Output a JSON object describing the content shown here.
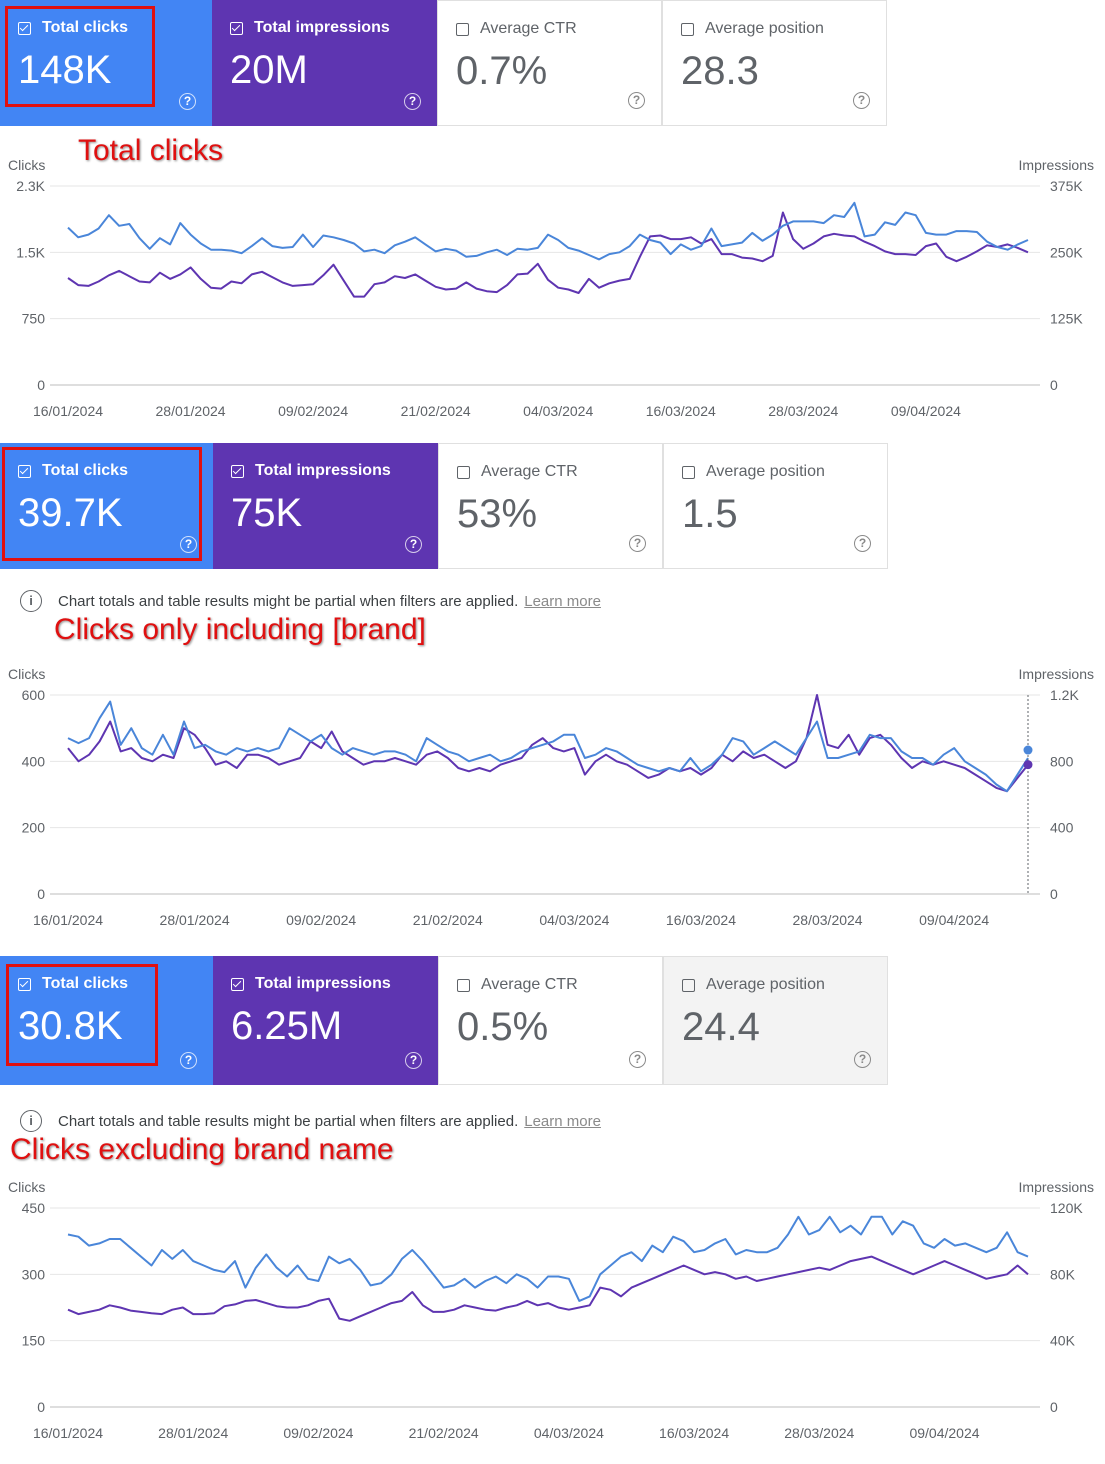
{
  "panels": [
    {
      "cards": {
        "clicks": {
          "label": "Total clicks",
          "value": "148K"
        },
        "impressions": {
          "label": "Total impressions",
          "value": "20M"
        },
        "ctr": {
          "label": "Average CTR",
          "value": "0.7%"
        },
        "position": {
          "label": "Average position",
          "value": "28.3"
        }
      },
      "annotation": "Total clicks"
    },
    {
      "cards": {
        "clicks": {
          "label": "Total clicks",
          "value": "39.7K"
        },
        "impressions": {
          "label": "Total impressions",
          "value": "75K"
        },
        "ctr": {
          "label": "Average CTR",
          "value": "53%"
        },
        "position": {
          "label": "Average position",
          "value": "1.5"
        }
      },
      "info": {
        "text": "Chart totals and table results might be partial when filters are applied.",
        "link": "Learn more"
      },
      "annotation": "Clicks only including [brand]"
    },
    {
      "cards": {
        "clicks": {
          "label": "Total clicks",
          "value": "30.8K"
        },
        "impressions": {
          "label": "Total impressions",
          "value": "6.25M"
        },
        "ctr": {
          "label": "Average CTR",
          "value": "0.5%"
        },
        "position": {
          "label": "Average position",
          "value": "24.4"
        }
      },
      "info": {
        "text": "Chart totals and table results might be partial when filters are applied.",
        "link": "Learn more"
      },
      "annotation": "Clicks excluding brand name"
    }
  ],
  "colors": {
    "clicks": "#4a86d9",
    "impressions": "#5e35b1"
  },
  "chart_data": [
    {
      "type": "line",
      "left_axis_label": "Clicks",
      "right_axis_label": "Impressions",
      "left_ticks": [
        "0",
        "750",
        "1.5K",
        "2.3K"
      ],
      "left_tick_values": [
        0,
        750,
        1500,
        2250
      ],
      "right_ticks": [
        "0",
        "125K",
        "250K",
        "375K"
      ],
      "right_tick_values": [
        0,
        125000,
        250000,
        375000
      ],
      "x_tick_labels": [
        "16/01/2024",
        "28/01/2024",
        "09/02/2024",
        "21/02/2024",
        "04/03/2024",
        "16/03/2024",
        "28/03/2024",
        "09/04/2024"
      ],
      "x_tick_indices": [
        0,
        12,
        24,
        36,
        48,
        60,
        72,
        84
      ],
      "series": [
        {
          "name": "Total clicks",
          "axis": "left",
          "values": [
            1780,
            1670,
            1700,
            1770,
            1920,
            1800,
            1820,
            1660,
            1540,
            1660,
            1590,
            1830,
            1700,
            1600,
            1530,
            1530,
            1520,
            1490,
            1570,
            1660,
            1570,
            1550,
            1560,
            1700,
            1560,
            1690,
            1670,
            1640,
            1600,
            1510,
            1530,
            1490,
            1580,
            1620,
            1670,
            1590,
            1510,
            1540,
            1520,
            1450,
            1460,
            1500,
            1530,
            1470,
            1540,
            1530,
            1550,
            1700,
            1640,
            1550,
            1520,
            1470,
            1420,
            1480,
            1500,
            1570,
            1700,
            1640,
            1610,
            1480,
            1590,
            1530,
            1570,
            1770,
            1570,
            1590,
            1610,
            1720,
            1630,
            1700,
            1800,
            1850,
            1850,
            1850,
            1830,
            1920,
            1900,
            2060,
            1680,
            1700,
            1840,
            1810,
            1950,
            1920,
            1720,
            1700,
            1700,
            1740,
            1740,
            1730,
            1620,
            1560,
            1530,
            1590,
            1640
          ]
        },
        {
          "name": "Total impressions",
          "axis": "left",
          "values": [
            1210,
            1130,
            1120,
            1170,
            1240,
            1290,
            1230,
            1170,
            1160,
            1270,
            1200,
            1250,
            1330,
            1200,
            1100,
            1090,
            1170,
            1150,
            1250,
            1280,
            1220,
            1160,
            1120,
            1130,
            1140,
            1240,
            1360,
            1180,
            1000,
            1000,
            1140,
            1160,
            1230,
            1210,
            1250,
            1180,
            1110,
            1080,
            1090,
            1160,
            1090,
            1060,
            1050,
            1130,
            1250,
            1260,
            1370,
            1190,
            1100,
            1080,
            1040,
            1200,
            1100,
            1150,
            1180,
            1200,
            1450,
            1680,
            1690,
            1650,
            1650,
            1670,
            1600,
            1650,
            1480,
            1480,
            1440,
            1430,
            1400,
            1460,
            1950,
            1650,
            1540,
            1600,
            1680,
            1710,
            1690,
            1680,
            1620,
            1570,
            1510,
            1480,
            1480,
            1470,
            1570,
            1600,
            1450,
            1400,
            1450,
            1510,
            1580,
            1560,
            1590,
            1550,
            1500
          ]
        }
      ]
    },
    {
      "type": "line",
      "left_axis_label": "Clicks",
      "right_axis_label": "Impressions",
      "left_ticks": [
        "0",
        "200",
        "400",
        "600"
      ],
      "left_tick_values": [
        0,
        200,
        400,
        600
      ],
      "right_ticks": [
        "0",
        "400",
        "800",
        "1.2K"
      ],
      "right_tick_values": [
        0,
        400,
        800,
        1200
      ],
      "x_tick_labels": [
        "16/01/2024",
        "28/01/2024",
        "09/02/2024",
        "21/02/2024",
        "04/03/2024",
        "16/03/2024",
        "28/03/2024",
        "09/04/2024"
      ],
      "x_tick_indices": [
        0,
        12,
        24,
        36,
        48,
        60,
        72,
        84
      ],
      "series": [
        {
          "name": "Total clicks",
          "axis": "left",
          "values": [
            470,
            455,
            470,
            530,
            580,
            450,
            500,
            440,
            420,
            480,
            420,
            520,
            440,
            450,
            430,
            420,
            440,
            430,
            440,
            430,
            440,
            500,
            480,
            460,
            480,
            440,
            420,
            440,
            430,
            420,
            430,
            430,
            420,
            400,
            470,
            450,
            430,
            420,
            400,
            410,
            420,
            400,
            410,
            430,
            440,
            450,
            460,
            480,
            480,
            410,
            420,
            440,
            430,
            410,
            390,
            380,
            370,
            380,
            370,
            410,
            370,
            390,
            420,
            470,
            460,
            420,
            440,
            460,
            440,
            420,
            470,
            520,
            410,
            410,
            420,
            430,
            480,
            470,
            470,
            430,
            410,
            410,
            390,
            420,
            440,
            400,
            380,
            360,
            330,
            310,
            360,
            410
          ]
        },
        {
          "name": "Total impressions",
          "axis": "left",
          "values": [
            440,
            400,
            420,
            460,
            520,
            430,
            440,
            410,
            400,
            420,
            410,
            500,
            480,
            440,
            390,
            400,
            380,
            420,
            420,
            410,
            390,
            400,
            410,
            460,
            440,
            490,
            430,
            410,
            390,
            400,
            400,
            410,
            400,
            390,
            420,
            430,
            410,
            380,
            370,
            380,
            370,
            390,
            400,
            410,
            450,
            470,
            440,
            430,
            440,
            360,
            400,
            420,
            400,
            390,
            370,
            350,
            360,
            380,
            370,
            380,
            360,
            380,
            420,
            400,
            430,
            410,
            420,
            400,
            380,
            400,
            470,
            600,
            450,
            440,
            480,
            420,
            470,
            480,
            450,
            410,
            380,
            400,
            390,
            400,
            390,
            380,
            360,
            340,
            320,
            310,
            350,
            390
          ]
        }
      ]
    },
    {
      "type": "line",
      "left_axis_label": "Clicks",
      "right_axis_label": "Impressions",
      "left_ticks": [
        "0",
        "150",
        "300",
        "450"
      ],
      "left_tick_values": [
        0,
        150,
        300,
        450
      ],
      "right_ticks": [
        "0",
        "40K",
        "80K",
        "120K"
      ],
      "right_tick_values": [
        0,
        40000,
        80000,
        120000
      ],
      "x_tick_labels": [
        "16/01/2024",
        "28/01/2024",
        "09/02/2024",
        "21/02/2024",
        "04/03/2024",
        "16/03/2024",
        "28/03/2024",
        "09/04/2024"
      ],
      "x_tick_indices": [
        0,
        12,
        24,
        36,
        48,
        60,
        72,
        84
      ],
      "series": [
        {
          "name": "Total clicks",
          "axis": "left",
          "values": [
            390,
            385,
            365,
            370,
            380,
            380,
            360,
            340,
            320,
            355,
            335,
            355,
            330,
            320,
            310,
            305,
            330,
            270,
            315,
            345,
            315,
            295,
            320,
            290,
            285,
            340,
            325,
            335,
            310,
            275,
            280,
            300,
            335,
            355,
            330,
            300,
            270,
            275,
            290,
            270,
            285,
            295,
            280,
            300,
            290,
            270,
            295,
            295,
            290,
            240,
            250,
            300,
            320,
            340,
            350,
            330,
            365,
            350,
            385,
            375,
            350,
            355,
            370,
            380,
            345,
            355,
            350,
            350,
            360,
            390,
            430,
            390,
            400,
            430,
            395,
            410,
            390,
            430,
            430,
            390,
            420,
            410,
            370,
            360,
            380,
            365,
            370,
            360,
            350,
            360,
            395,
            350,
            340
          ]
        },
        {
          "name": "Total impressions",
          "axis": "left",
          "values": [
            220,
            210,
            215,
            220,
            230,
            225,
            218,
            215,
            212,
            210,
            220,
            225,
            210,
            210,
            212,
            228,
            232,
            240,
            242,
            235,
            228,
            225,
            225,
            230,
            240,
            245,
            200,
            195,
            205,
            215,
            225,
            235,
            240,
            260,
            230,
            215,
            215,
            220,
            230,
            225,
            220,
            218,
            225,
            230,
            240,
            230,
            235,
            225,
            220,
            225,
            230,
            270,
            265,
            250,
            270,
            280,
            290,
            300,
            310,
            320,
            310,
            300,
            305,
            300,
            290,
            295,
            285,
            290,
            295,
            300,
            305,
            310,
            315,
            310,
            320,
            330,
            335,
            340,
            330,
            320,
            310,
            300,
            310,
            320,
            330,
            320,
            310,
            300,
            290,
            295,
            300,
            320,
            300
          ]
        }
      ]
    }
  ]
}
